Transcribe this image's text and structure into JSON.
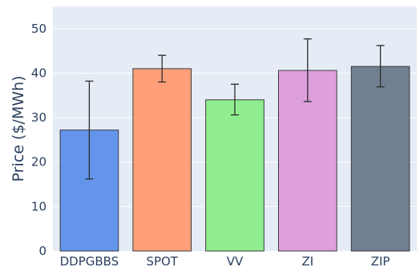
{
  "chart_data": {
    "type": "bar",
    "title": "",
    "xlabel": "",
    "ylabel": "Price ($/MWh)",
    "ylim": [
      0,
      55
    ],
    "yticks": [
      0,
      10,
      20,
      30,
      40,
      50
    ],
    "grid": true,
    "categories": [
      "DDPGBBS",
      "SPOT",
      "VV",
      "ZI",
      "ZIP"
    ],
    "values": [
      27.2,
      41.0,
      34.0,
      40.6,
      41.5
    ],
    "error_low": [
      16.2,
      38.0,
      30.6,
      33.6,
      36.9
    ],
    "error_high": [
      38.2,
      44.0,
      37.5,
      47.7,
      46.2
    ],
    "colors": [
      "#6495ed",
      "#ffa07a",
      "#90ee90",
      "#dda0dd",
      "#708090"
    ],
    "plot_background": "#e5ecf6",
    "grid_color": "#ffffff"
  }
}
